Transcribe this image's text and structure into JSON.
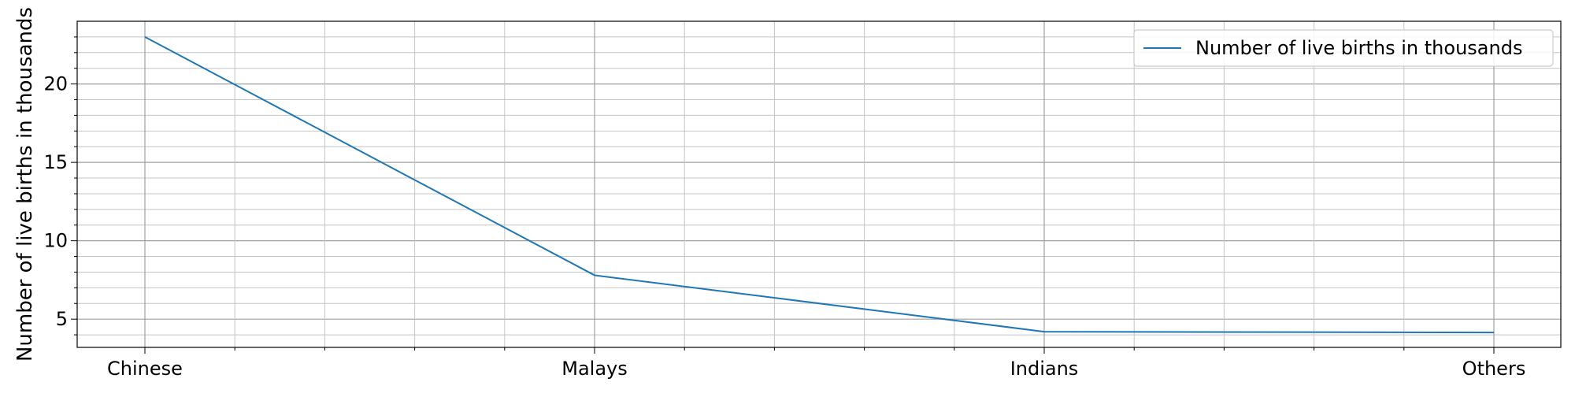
{
  "chart_data": {
    "type": "line",
    "categories": [
      "Chinese",
      "Malays",
      "Indians",
      "Others"
    ],
    "series": [
      {
        "name": "Number of live births in thousands",
        "values": [
          23.0,
          7.8,
          4.2,
          4.15
        ],
        "color": "#1f77b4"
      }
    ],
    "title": "",
    "xlabel": "",
    "ylabel": "Number of live births in thousands",
    "ylim": [
      3.2,
      24.0
    ],
    "y_major_ticks": [
      5,
      10,
      15,
      20
    ],
    "y_minor_step": 1,
    "x_minor_divisions": 5,
    "grid": true,
    "legend_position": "top-right"
  }
}
